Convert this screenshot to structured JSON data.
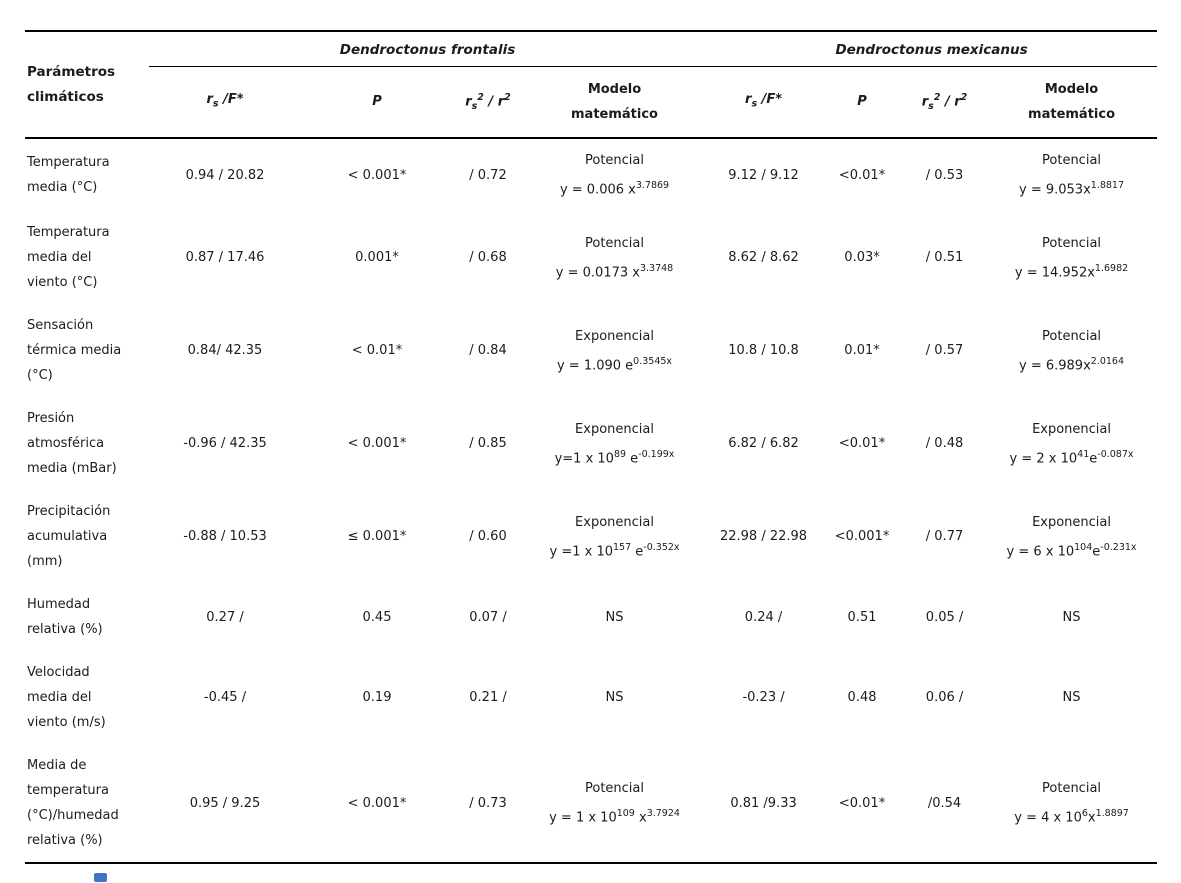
{
  "colors": {
    "artifact_blue": "#4472c4"
  },
  "table": {
    "param_header": "Parámetros\nclimáticos",
    "species": [
      "Dendroctonus frontalis",
      "Dendroctonus mexicanus"
    ],
    "headers": {
      "rsf": [
        {
          "t": "r"
        },
        {
          "t": "s",
          "s": "sub"
        },
        {
          "t": " /F*"
        }
      ],
      "p": "P",
      "r2": [
        {
          "t": "r"
        },
        {
          "t": "s",
          "s": "sub"
        },
        {
          "t": "2",
          "s": "sup"
        },
        {
          "t": " / r"
        },
        {
          "t": "2",
          "s": "sup"
        }
      ],
      "modelo_l1": "Modelo",
      "modelo_l2": "matemático"
    },
    "rows": [
      {
        "param": "Temperatura\nmedia (°C)",
        "f": {
          "rsf": "0.94 / 20.82",
          "p": "< 0.001*",
          "r2": "/ 0.72",
          "modelo_type": "Potencial",
          "modelo_eq": [
            {
              "t": "y = 0.006 x"
            },
            {
              "t": "3.7869",
              "s": "sup"
            }
          ]
        },
        "m": {
          "rsf": "9.12 / 9.12",
          "p": "<0.01*",
          "r2": "/ 0.53",
          "modelo_type": "Potencial",
          "modelo_eq": [
            {
              "t": "y = 9.053x"
            },
            {
              "t": "1.8817",
              "s": "sup"
            }
          ]
        }
      },
      {
        "param": "Temperatura\nmedia del\nviento (°C)",
        "f": {
          "rsf": "0.87 / 17.46",
          "p": "0.001*",
          "r2": "/ 0.68",
          "modelo_type": "Potencial",
          "modelo_eq": [
            {
              "t": "y = 0.0173 x"
            },
            {
              "t": "3.3748",
              "s": "sup"
            }
          ]
        },
        "m": {
          "rsf": "8.62 / 8.62",
          "p": "0.03*",
          "r2": "/ 0.51",
          "modelo_type": "Potencial",
          "modelo_eq": [
            {
              "t": "y = 14.952x"
            },
            {
              "t": "1.6982",
              "s": "sup"
            }
          ]
        }
      },
      {
        "param": "Sensación\ntérmica media\n(°C)",
        "f": {
          "rsf": "0.84/ 42.35",
          "p": "< 0.01*",
          "r2": "/ 0.84",
          "modelo_type": "Exponencial",
          "modelo_eq": [
            {
              "t": "y = 1.090 e"
            },
            {
              "t": "0.3545x",
              "s": "sup"
            }
          ]
        },
        "m": {
          "rsf": "10.8 / 10.8",
          "p": "0.01*",
          "r2": "/ 0.57",
          "modelo_type": "Potencial",
          "modelo_eq": [
            {
              "t": "y = 6.989x"
            },
            {
              "t": "2.0164",
              "s": "sup"
            }
          ]
        }
      },
      {
        "param": "Presión\natmosférica\nmedia (mBar)",
        "f": {
          "rsf": "-0.96 / 42.35",
          "p": "< 0.001*",
          "r2": "/ 0.85",
          "modelo_type": "Exponencial",
          "modelo_eq": [
            {
              "t": "y=1 x 10"
            },
            {
              "t": "89",
              "s": "sup"
            },
            {
              "t": " e"
            },
            {
              "t": "-0.199x",
              "s": "sup"
            }
          ]
        },
        "m": {
          "rsf": "6.82 / 6.82",
          "p": "<0.01*",
          "r2": "/ 0.48",
          "modelo_type": "Exponencial",
          "modelo_eq": [
            {
              "t": "y = 2 x 10"
            },
            {
              "t": "41",
              "s": "sup"
            },
            {
              "t": "e"
            },
            {
              "t": "-0.087x",
              "s": "sup"
            }
          ]
        }
      },
      {
        "param": "Precipitación\nacumulativa\n(mm)",
        "f": {
          "rsf": "-0.88 / 10.53",
          "p": "≤ 0.001*",
          "r2": "/ 0.60",
          "modelo_type": "Exponencial",
          "modelo_eq": [
            {
              "t": "y =1 x 10"
            },
            {
              "t": "157",
              "s": "sup"
            },
            {
              "t": " e"
            },
            {
              "t": "-0.352x",
              "s": "sup"
            }
          ]
        },
        "m": {
          "rsf": "22.98 / 22.98",
          "p": "<0.001*",
          "r2": "/ 0.77",
          "modelo_type": "Exponencial",
          "modelo_eq": [
            {
              "t": "y = 6 x 10"
            },
            {
              "t": "104",
              "s": "sup"
            },
            {
              "t": "e"
            },
            {
              "t": "-0.231x",
              "s": "sup"
            }
          ]
        }
      },
      {
        "param": "Humedad\nrelativa (%)",
        "f": {
          "rsf": "0.27 /",
          "p": "0.45",
          "r2": "0.07 /",
          "modelo_type": "NS"
        },
        "m": {
          "rsf": "0.24 /",
          "p": "0.51",
          "r2": "0.05 /",
          "modelo_type": "NS"
        }
      },
      {
        "param": "Velocidad\nmedia del\nviento (m/s)",
        "f": {
          "rsf": "-0.45 /",
          "p": "0.19",
          "r2": "0.21 /",
          "modelo_type": "NS"
        },
        "m": {
          "rsf": "-0.23 /",
          "p": "0.48",
          "r2": "0.06 /",
          "modelo_type": "NS"
        }
      },
      {
        "param": "Media de\ntemperatura\n(°C)/humedad\nrelativa (%)",
        "f": {
          "rsf": "0.95 / 9.25",
          "p": "< 0.001*",
          "r2": "/ 0.73",
          "modelo_type": "Potencial",
          "modelo_eq": [
            {
              "t": "y = 1 x 10"
            },
            {
              "t": "109",
              "s": "sup"
            },
            {
              "t": " x"
            },
            {
              "t": "3.7924",
              "s": "sup"
            }
          ]
        },
        "m": {
          "rsf": "0.81 /9.33",
          "p": "<0.01*",
          "r2": "/0.54",
          "modelo_type": "Potencial",
          "modelo_eq": [
            {
              "t": "y = 4 x 10"
            },
            {
              "t": "6",
              "s": "sup"
            },
            {
              "t": "x"
            },
            {
              "t": "1.8897",
              "s": "sup"
            }
          ]
        }
      }
    ]
  }
}
